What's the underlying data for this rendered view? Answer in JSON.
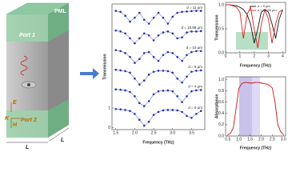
{
  "diagram": {
    "pml": "PML",
    "port1": "Port 1",
    "port2": "Port 2",
    "e": "E",
    "h": "H",
    "k": "K",
    "l1": "L",
    "l2": "L"
  },
  "chart_data": [
    {
      "type": "line",
      "markers": true,
      "xlabel": "Frequency (THz)",
      "ylabel": "Transmission",
      "x": [
        1.5,
        1.625,
        1.75,
        1.875,
        2.0,
        2.125,
        2.25,
        2.375,
        2.5,
        2.625,
        2.75,
        2.875,
        3.0,
        3.125,
        3.25,
        3.375,
        3.5,
        3.625,
        3.75
      ],
      "xlim": [
        1.4,
        3.85
      ],
      "ylim": [
        -0.1,
        6.3
      ],
      "xticks": [
        1.5,
        {
          "value": 2,
          "label": "2.0"
        },
        2.5,
        {
          "value": 3,
          "label": "3.0"
        },
        3.5
      ],
      "yticks": [
        0,
        1
      ],
      "series": [
        {
          "name": "d = 0 μm",
          "color": "#2233aa",
          "values": [
            0.95,
            0.93,
            0.9,
            0.85,
            0.7,
            0.4,
            0.1,
            0.3,
            0.65,
            0.8,
            0.88,
            0.9,
            0.9,
            0.88,
            0.8,
            0.6,
            0.5,
            0.7,
            0.85
          ]
        },
        {
          "name": "d = 4 μm",
          "color": "#2233aa",
          "values": [
            1.95,
            1.93,
            1.9,
            1.82,
            1.6,
            1.25,
            1.1,
            1.35,
            1.7,
            1.85,
            1.88,
            1.9,
            1.85,
            1.6,
            1.3,
            1.6,
            1.85,
            1.9,
            1.92
          ]
        },
        {
          "name": "d = 8 μm",
          "color": "#2233aa",
          "values": [
            2.95,
            2.92,
            2.88,
            2.8,
            2.5,
            2.2,
            2.4,
            2.7,
            2.85,
            2.9,
            2.9,
            2.88,
            2.8,
            2.5,
            2.3,
            2.6,
            2.85,
            2.9,
            2.92
          ]
        },
        {
          "name": "d = 10 μm",
          "color": "#2233aa",
          "values": [
            3.95,
            3.9,
            3.8,
            3.6,
            3.3,
            3.5,
            3.8,
            3.85,
            3.6,
            3.4,
            3.7,
            3.85,
            3.8,
            3.6,
            3.4,
            3.7,
            3.85,
            3.9,
            3.9
          ]
        },
        {
          "name": "d = 10.95 μm",
          "color": "#2233aa",
          "values": [
            4.95,
            4.9,
            4.8,
            4.55,
            4.3,
            4.55,
            4.8,
            4.7,
            4.45,
            4.7,
            4.85,
            4.9,
            4.8,
            4.55,
            4.6,
            4.85,
            4.9,
            4.9,
            4.92
          ]
        },
        {
          "name": "d = 11 μm",
          "color": "#2233aa",
          "values": [
            5.95,
            5.9,
            5.7,
            5.4,
            5.6,
            5.85,
            5.5,
            5.3,
            5.6,
            5.85,
            5.6,
            5.3,
            5.65,
            5.85,
            5.9,
            5.92,
            5.94,
            5.95,
            5.95
          ]
        }
      ]
    },
    {
      "type": "line",
      "markers": false,
      "xlabel": "Frequency (THz)",
      "ylabel": "Transmission",
      "x": [
        0,
        0.25,
        0.5,
        0.75,
        1,
        1.25,
        1.5,
        1.75,
        2,
        2.25,
        2.5,
        2.75,
        3,
        3.25,
        3.5,
        3.75,
        4
      ],
      "xlim": [
        0,
        4.2
      ],
      "ylim": [
        0,
        1.05
      ],
      "xticks": [
        0,
        1,
        2,
        3,
        4
      ],
      "yticks": [
        {
          "value": 0,
          "label": "0.0"
        },
        0.5,
        {
          "value": 1,
          "label": "1.0"
        }
      ],
      "series": [
        {
          "name": "d = 0 μm",
          "color": "#111111",
          "values": [
            1,
            1,
            0.99,
            0.98,
            0.95,
            0.9,
            0.8,
            0.6,
            0.2,
            0.5,
            0.85,
            0.9,
            0.85,
            0.6,
            0.3,
            0.7,
            0.9
          ]
        },
        {
          "name": "d = 10.95 μm",
          "color": "#dd2222",
          "values": [
            1,
            1,
            0.98,
            0.95,
            0.85,
            0.3,
            0.8,
            0.95,
            0.5,
            0.1,
            0.6,
            0.9,
            0.7,
            0.2,
            0.6,
            0.85,
            0.9
          ]
        }
      ]
    },
    {
      "type": "line",
      "markers": false,
      "xlabel": "Frequency (THz)",
      "ylabel": "Absorptance",
      "x": [
        0.5,
        0.625,
        0.75,
        0.875,
        1,
        1.125,
        1.25,
        1.375,
        1.5,
        1.625,
        1.75,
        1.875,
        2,
        2.125,
        2.25,
        2.375,
        2.5,
        2.625,
        2.75,
        2.875,
        3
      ],
      "xlim": [
        0.4,
        3.1
      ],
      "ylim": [
        0,
        1.05
      ],
      "xticks": [
        0.5,
        {
          "value": 1,
          "label": "1.0"
        },
        1.5,
        {
          "value": 2,
          "label": "2.0"
        },
        2.5,
        {
          "value": 3,
          "label": "3.0"
        }
      ],
      "yticks": [
        {
          "value": 0,
          "label": "0.0"
        },
        0.2,
        0.4,
        0.6,
        0.8,
        {
          "value": 1,
          "label": "1.0"
        }
      ],
      "color": "#cc1111",
      "values": [
        0.02,
        0.05,
        0.15,
        0.5,
        0.85,
        0.93,
        0.95,
        0.95,
        0.94,
        0.94,
        0.95,
        0.95,
        0.94,
        0.93,
        0.92,
        0.9,
        0.85,
        0.6,
        0.2,
        0.08,
        0.03
      ]
    }
  ]
}
